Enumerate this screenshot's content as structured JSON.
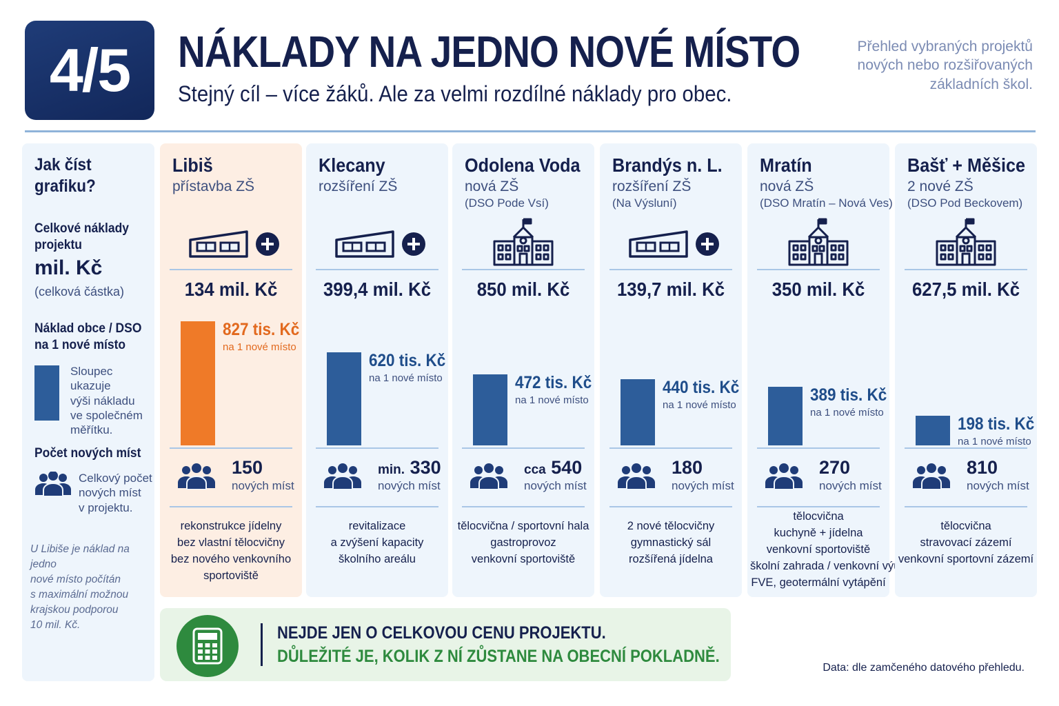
{
  "header": {
    "badge": "4/5",
    "title": "NÁKLADY NA JEDNO NOVÉ MÍSTO",
    "subtitle": "Stejný cíl – více žáků. Ale za velmi rozdílné náklady pro obec.",
    "side_note": [
      "Přehled vybraných projektů",
      "nových nebo rozšiřovaných",
      "základních škol."
    ]
  },
  "legend": {
    "heading": [
      "Jak číst",
      "grafiku?"
    ],
    "total_heading": [
      "Celkové náklady",
      "projektu"
    ],
    "total_unit": "mil. Kč",
    "total_note": "(celková částka)",
    "cost_heading": [
      "Náklad obce / DSO",
      "na 1 nové místo"
    ],
    "bar_note": [
      "Sloupec ukazuje",
      "výši nákladu",
      "ve společném",
      "měřítku."
    ],
    "places_heading": "Počet nových míst",
    "places_note": [
      "Celkový počet",
      "nových míst",
      "v projektu."
    ],
    "footnote": [
      "U Libiše je náklad na jedno",
      "nové místo počítán",
      "s maximální možnou",
      "krajskou podporou",
      "10 mil. Kč."
    ]
  },
  "chart_data": {
    "type": "bar",
    "title": "NÁKLADY NA JEDNO NOVÉ MÍSTO",
    "unit": "tis. Kč na 1 nové místo",
    "categories": [
      "Libiš",
      "Klecany",
      "Odolena Voda",
      "Brandýs n. L.",
      "Mratín",
      "Bašť + Měšice"
    ],
    "values": [
      827,
      620,
      472,
      440,
      389,
      198
    ],
    "highlight_color": "#ef7a28",
    "bar_color": "#2d5d9a"
  },
  "projects": [
    {
      "name": "Libiš",
      "type": "přístavba ZŠ",
      "sub": "",
      "icon": "school-extension-icon",
      "total": "134 mil. Kč",
      "cost": "827 tis. Kč",
      "cost_sub": "na 1 nové místo",
      "places_prefix": "",
      "places": "150",
      "places_label": "nových míst",
      "features": [
        "rekonstrukce jídelny",
        "bez vlastní tělocvičny",
        "bez nového venkovního",
        "sportoviště"
      ],
      "highlight": true
    },
    {
      "name": "Klecany",
      "type": "rozšíření ZŠ",
      "sub": "",
      "icon": "school-extension-icon",
      "total": "399,4 mil. Kč",
      "cost": "620 tis. Kč",
      "cost_sub": "na 1 nové místo",
      "places_prefix": "min.",
      "places": "330",
      "places_label": "nových míst",
      "features": [
        "revitalizace",
        "a zvýšení kapacity",
        "školního areálu"
      ],
      "highlight": false
    },
    {
      "name": "Odolena Voda",
      "type": "nová ZŠ",
      "sub": "(DSO Pode Vsí)",
      "icon": "school-building-icon",
      "total": "850 mil. Kč",
      "cost": "472 tis. Kč",
      "cost_sub": "na 1 nové místo",
      "places_prefix": "cca",
      "places": "540",
      "places_label": "nových míst",
      "features": [
        "tělocvična / sportovní hala",
        "gastroprovoz",
        "venkovní sportoviště"
      ],
      "highlight": false
    },
    {
      "name": "Brandýs n. L.",
      "type": "rozšíření ZŠ",
      "sub": "(Na Výsluní)",
      "icon": "school-extension-icon",
      "total": "139,7 mil. Kč",
      "cost": "440 tis. Kč",
      "cost_sub": "na 1 nové místo",
      "places_prefix": "",
      "places": "180",
      "places_label": "nových míst",
      "features": [
        "2 nové tělocvičny",
        "gymnastický sál",
        "rozšířená jídelna"
      ],
      "highlight": false
    },
    {
      "name": "Mratín",
      "type": "nová ZŠ",
      "sub": "(DSO Mratín – Nová Ves)",
      "icon": "school-building-icon",
      "total": "350 mil. Kč",
      "cost": "389 tis. Kč",
      "cost_sub": "na 1 nové místo",
      "places_prefix": "",
      "places": "270",
      "places_label": "nových míst",
      "features": [
        "tělocvična",
        "kuchyně + jídelna",
        "venkovní sportoviště",
        "školní zahrada / venkovní výuka",
        "FVE, geotermální vytápění"
      ],
      "highlight": false
    },
    {
      "name": "Bašť + Měšice",
      "type": "2 nové ZŠ",
      "sub": "(DSO Pod Beckovem)",
      "icon": "school-building-icon",
      "total": "627,5 mil. Kč",
      "cost": "198 tis. Kč",
      "cost_sub": "na 1 nové místo",
      "places_prefix": "",
      "places": "810",
      "places_label": "nových míst",
      "features": [
        "tělocvična",
        "stravovací zázemí",
        "venkovní sportovní zázemí"
      ],
      "highlight": false
    }
  ],
  "banner": {
    "line1": "NEJDE JEN O CELKOVOU CENU PROJEKTU.",
    "line2": "DŮLEŽITÉ JE, KOLIK Z NÍ ZŮSTANE NA OBECNÍ POKLADNĚ.",
    "icon": "calculator-icon"
  },
  "source": "Data: dle zamčeného datového přehledu."
}
